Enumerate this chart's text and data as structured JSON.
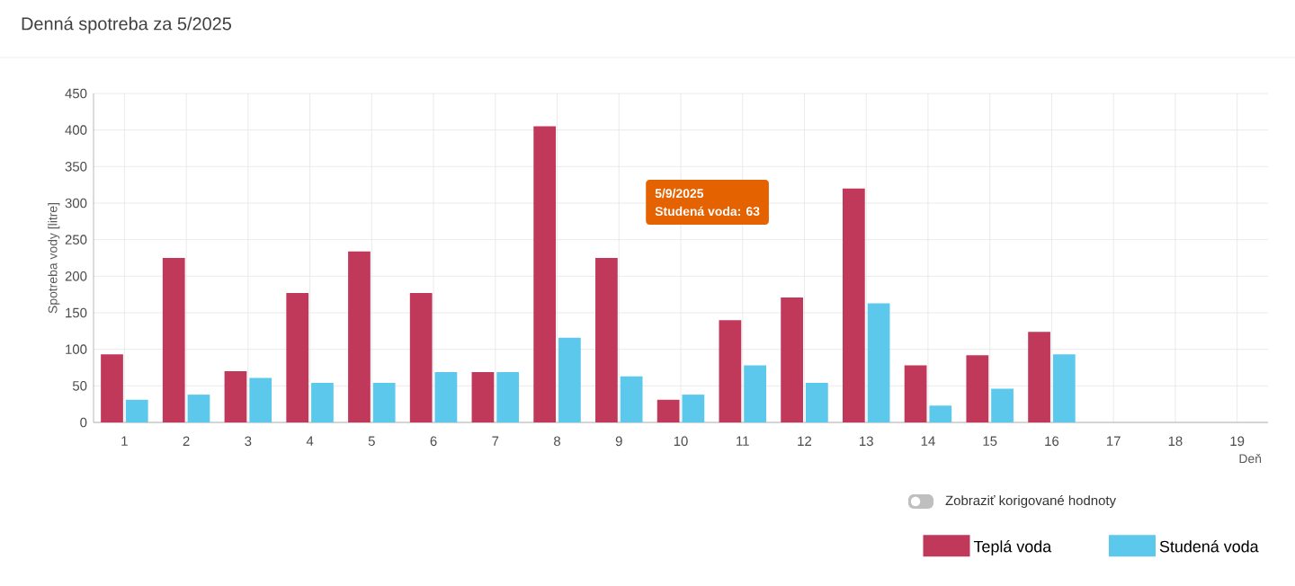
{
  "chart_data": {
    "type": "bar",
    "title": "Denná spotreba za 5/2025",
    "xlabel": "Deň",
    "ylabel": "Spotreba vody [litre]",
    "categories": [
      "1",
      "2",
      "3",
      "4",
      "5",
      "6",
      "7",
      "8",
      "9",
      "10",
      "11",
      "12",
      "13",
      "14",
      "15",
      "16",
      "17",
      "18",
      "19"
    ],
    "series": [
      {
        "name": "Teplá voda",
        "color": "#c0395a",
        "values": [
          93,
          225,
          70,
          177,
          234,
          177,
          69,
          405,
          225,
          31,
          140,
          171,
          320,
          78,
          92,
          124,
          null,
          null,
          null
        ]
      },
      {
        "name": "Studená voda",
        "color": "#5bc8ec",
        "values": [
          31,
          38,
          61,
          54,
          54,
          69,
          69,
          116,
          63,
          38,
          78,
          54,
          163,
          23,
          46,
          93,
          null,
          null,
          null
        ]
      }
    ],
    "ylim": [
      0,
      450
    ],
    "yticks": [
      0,
      50,
      100,
      150,
      200,
      250,
      300,
      350,
      400,
      450
    ],
    "grid": true,
    "legend": "bottom right",
    "annotations": [
      "5/9/2025",
      "Studená voda: 63",
      "Zobraziť korigované hodnoty"
    ]
  }
}
